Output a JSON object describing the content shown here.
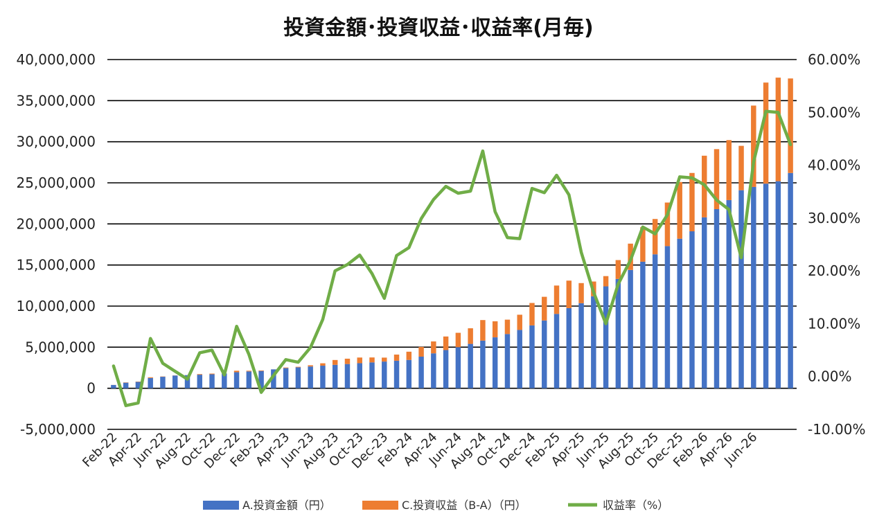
{
  "chart_data": {
    "type": "bar",
    "stacked": true,
    "title": "投資金額･投資収益･収益率(月毎)",
    "x": [
      "Feb-22",
      "Mar-22",
      "Apr-22",
      "May-22",
      "Jun-22",
      "Jul-22",
      "Aug-22",
      "Sep-22",
      "Oct-22",
      "Nov-22",
      "Dec-22",
      "Jan-23",
      "Feb-23",
      "Mar-23",
      "Apr-23",
      "May-23",
      "Jun-23",
      "Jul-23",
      "Aug-23",
      "Sep-23",
      "Oct-23",
      "Nov-23",
      "Dec-23",
      "Jan-24",
      "Feb-24",
      "Mar-24",
      "Apr-24",
      "May-24",
      "Jun-24",
      "Jul-24",
      "Aug-24",
      "Sep-24",
      "Oct-24",
      "Nov-24",
      "Dec-24",
      "Jan-25",
      "Feb-25",
      "Mar-25",
      "Apr-25",
      "May-25",
      "Jun-25",
      "Jul-25",
      "Aug-25",
      "Sep-25",
      "Oct-25",
      "Nov-25",
      "Dec-25",
      "Jan-26",
      "Feb-26",
      "Mar-26",
      "Apr-26",
      "May-26",
      "Jun-26",
      "Jul-26",
      "Aug-26",
      "Sep-26"
    ],
    "x_tick_labels": [
      "Feb-22",
      "Apr-22",
      "Jun-22",
      "Aug-22",
      "Oct-22",
      "Dec-22",
      "Feb-23",
      "Apr-23",
      "Jun-23",
      "Aug-23",
      "Oct-23",
      "Dec-23",
      "Feb-24",
      "Apr-24",
      "Jun-24",
      "Aug-24",
      "Oct-24",
      "Dec-24",
      "Feb-25",
      "Apr-25",
      "Jun-25",
      "Aug-25",
      "Oct-25",
      "Dec-25",
      "Feb-26",
      "Apr-26",
      "Jun-26"
    ],
    "series": [
      {
        "name": "A.投資金額（円）",
        "axis": "left",
        "kind": "bar",
        "color": "#4472C4",
        "values": [
          400000,
          700000,
          800000,
          1250000,
          1400000,
          1550000,
          1600000,
          1650000,
          1700000,
          1800000,
          1950000,
          2050000,
          2150000,
          2300000,
          2450000,
          2550000,
          2650000,
          2750000,
          2850000,
          2950000,
          3050000,
          3150000,
          3250000,
          3350000,
          3450000,
          3850000,
          4250000,
          4650000,
          5000000,
          5400000,
          5800000,
          6200000,
          6600000,
          7100000,
          7650000,
          8250000,
          9050000,
          9750000,
          10350000,
          11200000,
          12400000,
          13300000,
          14400000,
          15400000,
          16300000,
          17300000,
          18200000,
          19100000,
          20800000,
          21800000,
          22900000,
          24100000,
          24500000,
          24900000,
          25200000,
          26200000
        ]
      },
      {
        "name": "C.投資収益（B-A）（円）",
        "axis": "left",
        "kind": "bar",
        "color": "#ED7D31",
        "values": [
          8000,
          -38000,
          -40000,
          90000,
          35000,
          15000,
          -8000,
          75000,
          85000,
          5000,
          185000,
          85000,
          -65000,
          5000,
          75000,
          65000,
          150000,
          290000,
          590000,
          650000,
          690000,
          600000,
          480000,
          750000,
          1000000,
          1180000,
          1450000,
          1650000,
          1750000,
          1900000,
          2500000,
          1950000,
          1750000,
          1850000,
          2730000,
          2880000,
          3450000,
          3350000,
          2450000,
          1790000,
          1250000,
          2300000,
          3200000,
          4200000,
          4300000,
          5300000,
          6900000,
          7100000,
          7500000,
          7300000,
          7300000,
          5400000,
          9900000,
          12300000,
          12600000,
          11500000
        ]
      },
      {
        "name": "収益率（%）",
        "axis": "right",
        "kind": "line",
        "color": "#70AD47",
        "values": [
          2.0,
          -5.5,
          -5.0,
          7.2,
          2.5,
          1.0,
          -0.5,
          4.5,
          5.0,
          0.3,
          9.5,
          4.2,
          -3.0,
          0.2,
          3.2,
          2.7,
          5.5,
          10.8,
          20.0,
          21.2,
          23.0,
          19.5,
          14.8,
          22.9,
          24.4,
          29.9,
          33.5,
          36.0,
          34.7,
          35.1,
          42.7,
          31.2,
          26.3,
          26.1,
          35.6,
          34.8,
          38.1,
          34.4,
          23.5,
          16.0,
          10.0,
          17.5,
          22.0,
          28.3,
          27.0,
          30.6,
          37.8,
          37.6,
          36.3,
          33.4,
          31.6,
          22.5,
          40.6,
          50.2,
          50.0,
          43.9
        ]
      }
    ],
    "y_left": {
      "min": -5000000,
      "max": 40000000,
      "step": 5000000,
      "tick_labels": [
        "-5,000,000",
        "0",
        "5,000,000",
        "10,000,000",
        "15,000,000",
        "20,000,000",
        "25,000,000",
        "30,000,000",
        "35,000,000",
        "40,000,000"
      ]
    },
    "y_right": {
      "min": -10,
      "max": 60,
      "step": 10,
      "tick_labels": [
        "-10.00%",
        "0.00%",
        "10.00%",
        "20.00%",
        "30.00%",
        "40.00%",
        "50.00%",
        "60.00%"
      ]
    },
    "grid": true,
    "legend_position": "bottom"
  }
}
